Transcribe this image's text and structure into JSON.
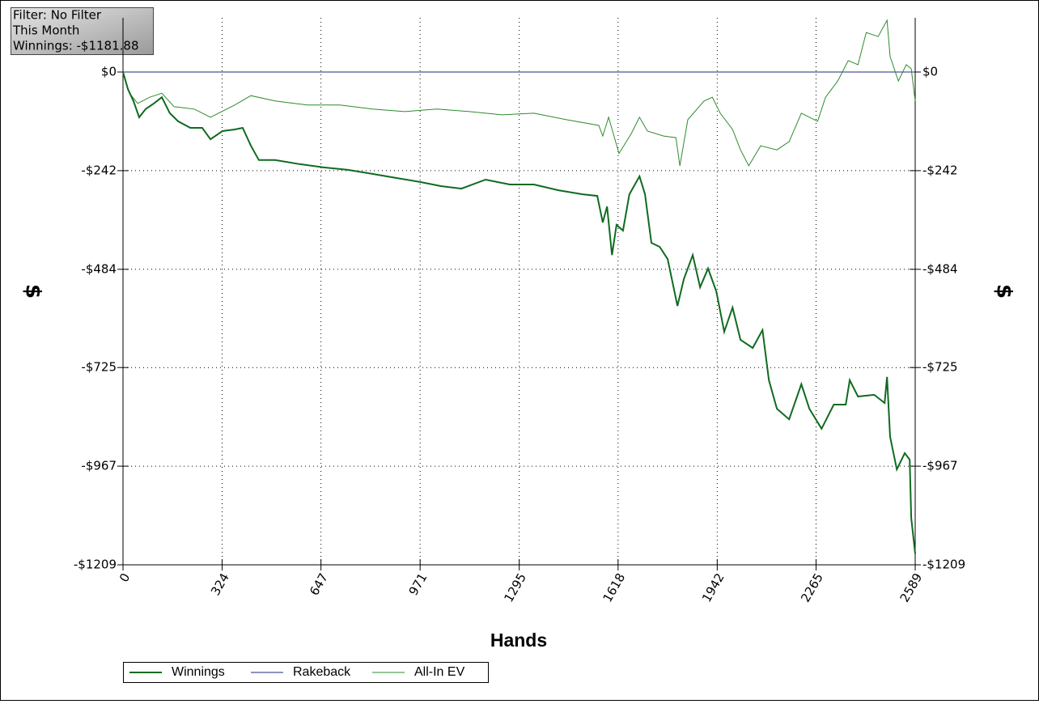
{
  "chart_data": {
    "type": "line",
    "info_box": [
      "Filter: No Filter",
      "This Month",
      "Winnings: -$1181.88"
    ],
    "x_label": "Hands",
    "y_label": "$",
    "xlim": [
      0,
      2589
    ],
    "xticks": [
      0,
      324,
      647,
      971,
      1295,
      1618,
      1942,
      2265,
      2589
    ],
    "ylim": [
      -1209,
      133
    ],
    "yticks": [
      {
        "value": 0,
        "label": "$0"
      },
      {
        "value": -242,
        "label": "-$242"
      },
      {
        "value": -484,
        "label": "-$484"
      },
      {
        "value": -725,
        "label": "-$725"
      },
      {
        "value": -967,
        "label": "-$967"
      },
      {
        "value": -1209,
        "label": "-$1209"
      }
    ],
    "grid": true,
    "series": [
      {
        "name": "Winnings",
        "color": "#0f6b1f",
        "width": 2,
        "x": [
          0,
          16,
          34,
          53,
          74,
          101,
          127,
          153,
          180,
          220,
          259,
          286,
          325,
          365,
          391,
          418,
          444,
          497,
          577,
          656,
          735,
          815,
          894,
          973,
          1039,
          1106,
          1185,
          1264,
          1343,
          1423,
          1502,
          1550,
          1568,
          1582,
          1598,
          1613,
          1634,
          1655,
          1688,
          1706,
          1727,
          1754,
          1780,
          1812,
          1833,
          1862,
          1886,
          1912,
          1939,
          1965,
          1992,
          2018,
          2058,
          2090,
          2111,
          2137,
          2177,
          2217,
          2243,
          2283,
          2323,
          2362,
          2375,
          2402,
          2455,
          2489,
          2497,
          2507,
          2529,
          2555,
          2571,
          2576,
          2589
        ],
        "values": [
          0,
          -42,
          -71,
          -111,
          -91,
          -77,
          -62,
          -101,
          -121,
          -137,
          -137,
          -165,
          -145,
          -141,
          -137,
          -181,
          -216,
          -216,
          -226,
          -234,
          -240,
          -250,
          -260,
          -270,
          -280,
          -286,
          -264,
          -276,
          -276,
          -290,
          -300,
          -304,
          -369,
          -330,
          -449,
          -375,
          -389,
          -300,
          -256,
          -300,
          -419,
          -429,
          -459,
          -574,
          -508,
          -449,
          -528,
          -482,
          -538,
          -637,
          -578,
          -657,
          -677,
          -633,
          -756,
          -826,
          -852,
          -766,
          -826,
          -875,
          -816,
          -816,
          -756,
          -796,
          -792,
          -812,
          -748,
          -895,
          -975,
          -935,
          -951,
          -1094,
          -1182
        ]
      },
      {
        "name": "Rakeback",
        "color": "#1f2a7a",
        "width": 1,
        "x": [
          0,
          2589
        ],
        "values": [
          0,
          0
        ]
      },
      {
        "name": "All-In EV",
        "color": "#2e8b2e",
        "width": 1,
        "x": [
          0,
          21,
          48,
          87,
          127,
          167,
          233,
          286,
          365,
          418,
          497,
          603,
          709,
          815,
          920,
          1026,
          1132,
          1238,
          1343,
          1449,
          1555,
          1568,
          1587,
          1621,
          1661,
          1688,
          1714,
          1767,
          1807,
          1820,
          1846,
          1899,
          1926,
          1952,
          1992,
          2018,
          2045,
          2084,
          2137,
          2177,
          2217,
          2270,
          2296,
          2336,
          2370,
          2402,
          2429,
          2468,
          2497,
          2507,
          2534,
          2560,
          2576,
          2589
        ],
        "values": [
          0,
          -52,
          -77,
          -62,
          -52,
          -85,
          -91,
          -111,
          -81,
          -58,
          -71,
          -81,
          -81,
          -91,
          -97,
          -91,
          -97,
          -105,
          -101,
          -117,
          -131,
          -157,
          -111,
          -200,
          -151,
          -111,
          -145,
          -157,
          -161,
          -230,
          -117,
          -71,
          -62,
          -101,
          -141,
          -191,
          -230,
          -181,
          -191,
          -171,
          -101,
          -121,
          -62,
          -22,
          28,
          18,
          97,
          87,
          127,
          38,
          -22,
          18,
          8,
          -71
        ]
      }
    ]
  }
}
